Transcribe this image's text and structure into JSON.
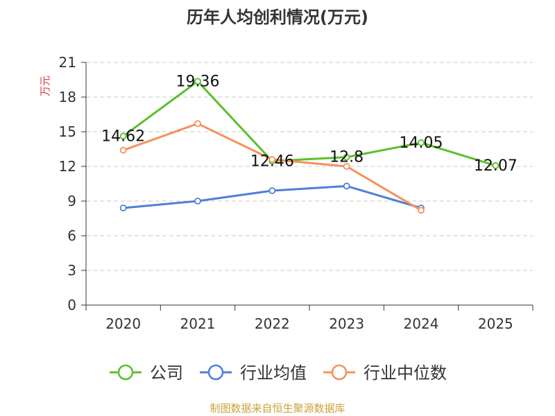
{
  "chart_data": {
    "type": "line",
    "title": "历年人均创利情况(万元)",
    "ylabel": "万元",
    "xlabel": "",
    "categories": [
      "2020",
      "2021",
      "2022",
      "2023",
      "2024",
      "2025"
    ],
    "ylim": [
      0,
      21
    ],
    "yticks": [
      0,
      3,
      6,
      9,
      12,
      15,
      18,
      21
    ],
    "grid": true,
    "legend_position": "bottom",
    "series": [
      {
        "name": "公司",
        "color": "#5bbf2c",
        "values": [
          14.62,
          19.36,
          12.46,
          12.8,
          14.05,
          12.07
        ],
        "labels": [
          "14.62",
          "19.36",
          "12.46",
          "12.8",
          "14.05",
          "12.07"
        ]
      },
      {
        "name": "行业均值",
        "color": "#4f7fd8",
        "values": [
          8.4,
          9.0,
          9.9,
          10.3,
          8.4,
          null
        ],
        "labels": null
      },
      {
        "name": "行业中位数",
        "color": "#f5915a",
        "values": [
          13.4,
          15.7,
          12.6,
          12.0,
          8.2,
          null
        ],
        "labels": null
      }
    ],
    "source": "制图数据来自恒生聚源数据库"
  }
}
